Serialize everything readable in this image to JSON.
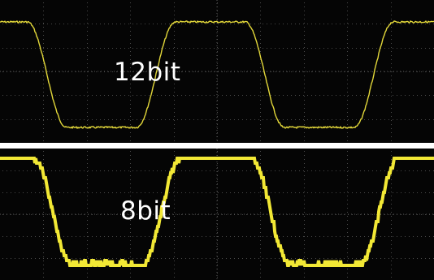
{
  "panels": [
    {
      "label": "12bit",
      "trace_color": "#e3d83a",
      "waveform": "square"
    },
    {
      "label": "8bit",
      "trace_color": "#f2e835",
      "waveform": "square"
    }
  ]
}
